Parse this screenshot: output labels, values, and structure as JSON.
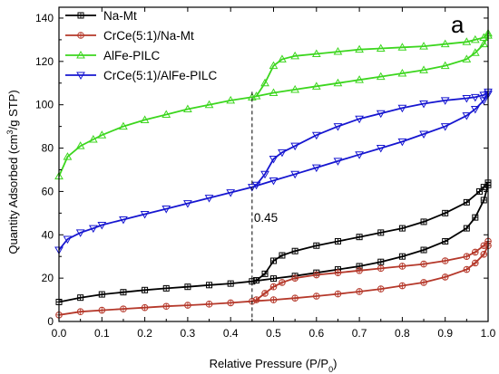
{
  "chart_data": {
    "type": "line",
    "panel_label": "a",
    "xlabel_main": "Relative Pressure (P/P",
    "xlabel_sub": "0",
    "xlabel_end": ")",
    "ylabel_main": "Quantity Adsorbed (cm",
    "ylabel_sup": "3",
    "ylabel_end": "/g STP)",
    "xlim": [
      0.0,
      1.0
    ],
    "ylim": [
      0,
      145
    ],
    "xticks": [
      "0.0",
      "0.1",
      "0.2",
      "0.3",
      "0.4",
      "0.5",
      "0.6",
      "0.7",
      "0.8",
      "0.9",
      "1.0"
    ],
    "yticks": [
      "0",
      "20",
      "40",
      "60",
      "80",
      "100",
      "120",
      "140"
    ],
    "xtick_values": [
      0.0,
      0.1,
      0.2,
      0.3,
      0.4,
      0.5,
      0.6,
      0.7,
      0.8,
      0.9,
      1.0
    ],
    "ytick_values": [
      0,
      20,
      40,
      60,
      80,
      100,
      120,
      140
    ],
    "legend_position": "top-left",
    "annotation": {
      "text": "0.45",
      "x": 0.45
    },
    "series": [
      {
        "name": "Na-Mt",
        "color": "#000000",
        "marker": "square-plus",
        "adsorption": {
          "x": [
            0.0,
            0.05,
            0.1,
            0.15,
            0.2,
            0.25,
            0.3,
            0.35,
            0.4,
            0.45,
            0.5,
            0.55,
            0.6,
            0.65,
            0.7,
            0.75,
            0.8,
            0.85,
            0.9,
            0.95,
            0.97,
            0.99,
            1.0
          ],
          "y": [
            9,
            11,
            12.5,
            13.5,
            14.5,
            15.3,
            16,
            16.8,
            17.5,
            18.5,
            19.8,
            21,
            22.5,
            24,
            25.5,
            27.5,
            30,
            33,
            37,
            43,
            48,
            56,
            63
          ]
        },
        "desorption": {
          "x": [
            1.0,
            0.99,
            0.98,
            0.95,
            0.9,
            0.85,
            0.8,
            0.75,
            0.7,
            0.65,
            0.6,
            0.55,
            0.52,
            0.5,
            0.48,
            0.46
          ],
          "y": [
            64,
            62,
            60,
            55,
            50,
            46,
            43,
            41,
            39,
            37,
            35,
            32.5,
            30.5,
            28,
            22,
            19
          ]
        }
      },
      {
        "name": "CrCe(5:1)/Na-Mt",
        "color": "#b5382a",
        "marker": "circle-plus",
        "adsorption": {
          "x": [
            0.0,
            0.05,
            0.1,
            0.15,
            0.2,
            0.25,
            0.3,
            0.35,
            0.4,
            0.45,
            0.5,
            0.55,
            0.6,
            0.65,
            0.7,
            0.75,
            0.8,
            0.85,
            0.9,
            0.95,
            0.97,
            0.99,
            1.0
          ],
          "y": [
            3,
            4.5,
            5.2,
            5.8,
            6.4,
            7,
            7.5,
            8,
            8.6,
            9.3,
            10,
            10.8,
            11.7,
            12.7,
            13.8,
            15,
            16.5,
            18,
            20.5,
            24,
            27,
            31,
            35
          ]
        },
        "desorption": {
          "x": [
            1.0,
            0.99,
            0.97,
            0.95,
            0.9,
            0.85,
            0.8,
            0.75,
            0.7,
            0.65,
            0.6,
            0.55,
            0.52,
            0.5,
            0.48,
            0.46
          ],
          "y": [
            37,
            35,
            32,
            30,
            28,
            26.5,
            25.5,
            24.5,
            23.5,
            22.5,
            21.5,
            20,
            18,
            16,
            13,
            10
          ]
        }
      },
      {
        "name": "AlFe-PILC",
        "color": "#3cd61e",
        "marker": "triangle-up",
        "adsorption": {
          "x": [
            0.0,
            0.02,
            0.05,
            0.08,
            0.1,
            0.15,
            0.2,
            0.25,
            0.3,
            0.35,
            0.4,
            0.45,
            0.5,
            0.55,
            0.6,
            0.65,
            0.7,
            0.75,
            0.8,
            0.85,
            0.9,
            0.95,
            0.97,
            0.99,
            1.0
          ],
          "y": [
            67,
            76,
            81,
            84,
            86,
            90,
            93,
            95.5,
            98,
            100,
            102,
            103.5,
            105.5,
            107,
            108.5,
            110,
            111.5,
            113,
            114.5,
            116,
            118,
            121,
            124,
            128,
            132
          ]
        },
        "desorption": {
          "x": [
            1.0,
            0.99,
            0.97,
            0.95,
            0.9,
            0.85,
            0.8,
            0.75,
            0.7,
            0.65,
            0.6,
            0.55,
            0.52,
            0.5,
            0.48,
            0.46
          ],
          "y": [
            133,
            131,
            130,
            129,
            128,
            127,
            126.5,
            126,
            125.5,
            124.5,
            123.5,
            122.5,
            121,
            118,
            110,
            104
          ]
        }
      },
      {
        "name": "CrCe(5:1)/AlFe-PILC",
        "color": "#1616d0",
        "marker": "triangle-down",
        "adsorption": {
          "x": [
            0.0,
            0.02,
            0.05,
            0.08,
            0.1,
            0.15,
            0.2,
            0.25,
            0.3,
            0.35,
            0.4,
            0.45,
            0.5,
            0.55,
            0.6,
            0.65,
            0.7,
            0.75,
            0.8,
            0.85,
            0.9,
            0.95,
            0.97,
            0.99,
            1.0
          ],
          "y": [
            33,
            38,
            41,
            43,
            44.5,
            47,
            49.5,
            52,
            54.5,
            57,
            59.5,
            62,
            65,
            68,
            71,
            74,
            77,
            80,
            83,
            86.5,
            90,
            95,
            98,
            102,
            105
          ]
        },
        "desorption": {
          "x": [
            1.0,
            0.99,
            0.97,
            0.95,
            0.9,
            0.85,
            0.8,
            0.75,
            0.7,
            0.65,
            0.6,
            0.55,
            0.52,
            0.5,
            0.48,
            0.46
          ],
          "y": [
            106,
            104.5,
            103.5,
            103,
            102,
            100.5,
            98.5,
            96,
            93.5,
            90,
            86,
            81,
            78,
            75,
            68,
            63
          ]
        }
      }
    ]
  }
}
